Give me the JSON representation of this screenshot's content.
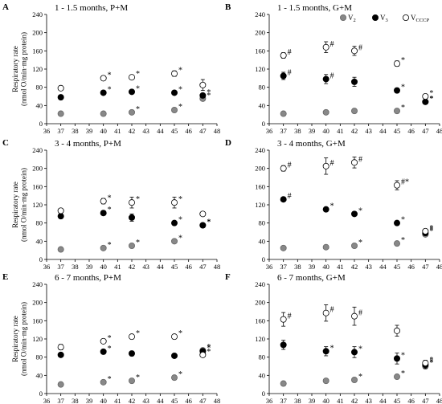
{
  "chart_data": [
    {
      "type": "scatter",
      "panel_letter": "A",
      "title": "1 - 1.5 months, P+M",
      "ylabel": "Respiratory rate (nmol O/min·mg protein)",
      "xlabel": "",
      "xlim": [
        36,
        48
      ],
      "ylim": [
        0,
        240
      ],
      "xticks": [
        36,
        37,
        38,
        39,
        40,
        41,
        42,
        43,
        44,
        45,
        46,
        47,
        48
      ],
      "yticks": [
        0,
        40,
        80,
        120,
        160,
        200,
        240
      ],
      "x": [
        37,
        40,
        42,
        45,
        47
      ],
      "series": [
        {
          "name": "V2",
          "style": "gray",
          "values": [
            22,
            22,
            25,
            30,
            55
          ],
          "err": [
            2,
            2,
            2,
            2,
            3
          ],
          "marks": [
            "",
            "",
            "*",
            "*",
            "*"
          ]
        },
        {
          "name": "V3",
          "style": "black",
          "values": [
            58,
            68,
            70,
            68,
            62
          ],
          "err": [
            3,
            3,
            3,
            3,
            4
          ],
          "marks": [
            "",
            "*",
            "*",
            "*",
            "*"
          ]
        },
        {
          "name": "VCCCP",
          "style": "open",
          "values": [
            78,
            100,
            102,
            110,
            85
          ],
          "err": [
            5,
            5,
            5,
            6,
            12
          ],
          "marks": [
            "",
            "*",
            "*",
            "*",
            ""
          ]
        }
      ]
    },
    {
      "type": "scatter",
      "panel_letter": "B",
      "title": "1 - 1.5 months, G+M",
      "ylabel": "",
      "xlabel": "",
      "xlim": [
        36,
        48
      ],
      "ylim": [
        0,
        240
      ],
      "xticks": [
        36,
        37,
        38,
        39,
        40,
        41,
        42,
        43,
        44,
        45,
        46,
        47,
        48
      ],
      "yticks": [
        0,
        40,
        80,
        120,
        160,
        200,
        240
      ],
      "x": [
        37,
        40,
        42,
        45,
        47
      ],
      "series": [
        {
          "name": "V2",
          "style": "gray",
          "values": [
            22,
            25,
            28,
            28,
            48
          ],
          "err": [
            2,
            2,
            2,
            2,
            3
          ],
          "marks": [
            "",
            "",
            "",
            "*",
            "*"
          ]
        },
        {
          "name": "V3",
          "style": "black",
          "values": [
            105,
            98,
            92,
            73,
            48
          ],
          "err": [
            8,
            10,
            10,
            5,
            4
          ],
          "marks": [
            "#",
            "#",
            "",
            "*",
            "*"
          ]
        },
        {
          "name": "VCCCP",
          "style": "open",
          "values": [
            150,
            168,
            160,
            132,
            60
          ],
          "err": [
            6,
            12,
            10,
            6,
            4
          ],
          "marks": [
            "#",
            "#",
            "#",
            "*",
            "*"
          ]
        }
      ],
      "legend": {
        "placement": "top-right",
        "labels": [
          "V",
          "V",
          "V"
        ],
        "subscripts": [
          "2",
          "3",
          "CCCP"
        ]
      }
    },
    {
      "type": "scatter",
      "panel_letter": "C",
      "title": "3 - 4 months, P+M",
      "ylabel": "Respiratory rate (nmol O/min·mg protein)",
      "xlabel": "",
      "xlim": [
        36,
        48
      ],
      "ylim": [
        0,
        240
      ],
      "xticks": [
        36,
        37,
        38,
        39,
        40,
        41,
        42,
        43,
        44,
        45,
        46,
        47,
        48
      ],
      "yticks": [
        0,
        40,
        80,
        120,
        160,
        200,
        240
      ],
      "x": [
        37,
        40,
        42,
        45,
        47
      ],
      "series": [
        {
          "name": "V2",
          "style": "gray",
          "values": [
            22,
            25,
            30,
            40,
            75
          ],
          "err": [
            2,
            2,
            2,
            2,
            3
          ],
          "marks": [
            "",
            "*",
            "*",
            "*",
            "*"
          ]
        },
        {
          "name": "V3",
          "style": "black",
          "values": [
            95,
            102,
            92,
            80,
            75
          ],
          "err": [
            5,
            5,
            8,
            4,
            4
          ],
          "marks": [
            "",
            "*",
            "",
            "*",
            "*"
          ]
        },
        {
          "name": "VCCCP",
          "style": "open",
          "values": [
            107,
            128,
            125,
            125,
            100
          ],
          "err": [
            4,
            6,
            12,
            12,
            4
          ],
          "marks": [
            "",
            "*",
            "*",
            "*",
            ""
          ]
        }
      ]
    },
    {
      "type": "scatter",
      "panel_letter": "D",
      "title": "3 - 4 months, G+M",
      "ylabel": "",
      "xlabel": "",
      "xlim": [
        36,
        48
      ],
      "ylim": [
        0,
        240
      ],
      "xticks": [
        36,
        37,
        38,
        39,
        40,
        41,
        42,
        43,
        44,
        45,
        46,
        47,
        48
      ],
      "yticks": [
        0,
        40,
        80,
        120,
        160,
        200,
        240
      ],
      "x": [
        37,
        40,
        42,
        45,
        47
      ],
      "series": [
        {
          "name": "V2",
          "style": "gray",
          "values": [
            25,
            27,
            30,
            35,
            55
          ],
          "err": [
            2,
            2,
            2,
            2,
            3
          ],
          "marks": [
            "",
            "",
            "*",
            "*",
            "*"
          ]
        },
        {
          "name": "V3",
          "style": "black",
          "values": [
            132,
            110,
            100,
            80,
            58
          ],
          "err": [
            3,
            4,
            5,
            3,
            4
          ],
          "marks": [
            "#",
            "*",
            "*",
            "*",
            "*"
          ]
        },
        {
          "name": "VCCCP",
          "style": "open",
          "values": [
            200,
            205,
            213,
            163,
            62
          ],
          "err": [
            6,
            18,
            12,
            10,
            4
          ],
          "marks": [
            "#",
            "#",
            "#",
            "#*",
            "*"
          ]
        }
      ]
    },
    {
      "type": "scatter",
      "panel_letter": "E",
      "title": "6 - 7 months, P+M",
      "ylabel": "Respiratory rate (nmol O/min·mg protein)",
      "xlabel": "Temperature (°C)",
      "xlim": [
        36,
        48
      ],
      "ylim": [
        0,
        240
      ],
      "xticks": [
        36,
        37,
        38,
        39,
        40,
        41,
        42,
        43,
        44,
        45,
        46,
        47,
        48
      ],
      "yticks": [
        0,
        40,
        80,
        120,
        160,
        200,
        240
      ],
      "x": [
        37,
        40,
        42,
        45,
        47
      ],
      "series": [
        {
          "name": "V2",
          "style": "gray",
          "values": [
            20,
            25,
            28,
            35,
            95
          ],
          "err": [
            2,
            2,
            2,
            2,
            3
          ],
          "marks": [
            "",
            "*",
            "*",
            "*",
            "*"
          ]
        },
        {
          "name": "V3",
          "style": "black",
          "values": [
            85,
            92,
            88,
            83,
            93
          ],
          "err": [
            4,
            4,
            5,
            3,
            4
          ],
          "marks": [
            "",
            "*",
            "",
            "",
            "*"
          ]
        },
        {
          "name": "VCCCP",
          "style": "open",
          "values": [
            102,
            115,
            125,
            125,
            85
          ],
          "err": [
            6,
            4,
            4,
            4,
            3
          ],
          "marks": [
            "",
            "*",
            "*",
            "*",
            "*"
          ]
        }
      ]
    },
    {
      "type": "scatter",
      "panel_letter": "F",
      "title": "6 - 7 months, G+M",
      "ylabel": "",
      "xlabel": "Temperature (°C)",
      "xlim": [
        36,
        48
      ],
      "ylim": [
        0,
        240
      ],
      "xticks": [
        36,
        37,
        38,
        39,
        40,
        41,
        42,
        43,
        44,
        45,
        46,
        47,
        48
      ],
      "yticks": [
        0,
        40,
        80,
        120,
        160,
        200,
        240
      ],
      "x": [
        37,
        40,
        42,
        45,
        47
      ],
      "series": [
        {
          "name": "V2",
          "style": "gray",
          "values": [
            22,
            28,
            30,
            37,
            60
          ],
          "err": [
            2,
            2,
            2,
            2,
            3
          ],
          "marks": [
            "",
            "",
            "*",
            "*",
            "*"
          ]
        },
        {
          "name": "V3",
          "style": "black",
          "values": [
            107,
            93,
            91,
            77,
            63
          ],
          "err": [
            10,
            10,
            12,
            12,
            8
          ],
          "marks": [
            "",
            "*",
            "*",
            "*",
            "*"
          ]
        },
        {
          "name": "VCCCP",
          "style": "open",
          "values": [
            163,
            177,
            170,
            138,
            67
          ],
          "err": [
            15,
            18,
            20,
            12,
            6
          ],
          "marks": [
            "#",
            "#",
            "#",
            "",
            "*"
          ]
        }
      ]
    }
  ],
  "colors": {
    "gray": "#888888",
    "black": "#000000",
    "open": "#ffffff",
    "axis": "#000000"
  }
}
